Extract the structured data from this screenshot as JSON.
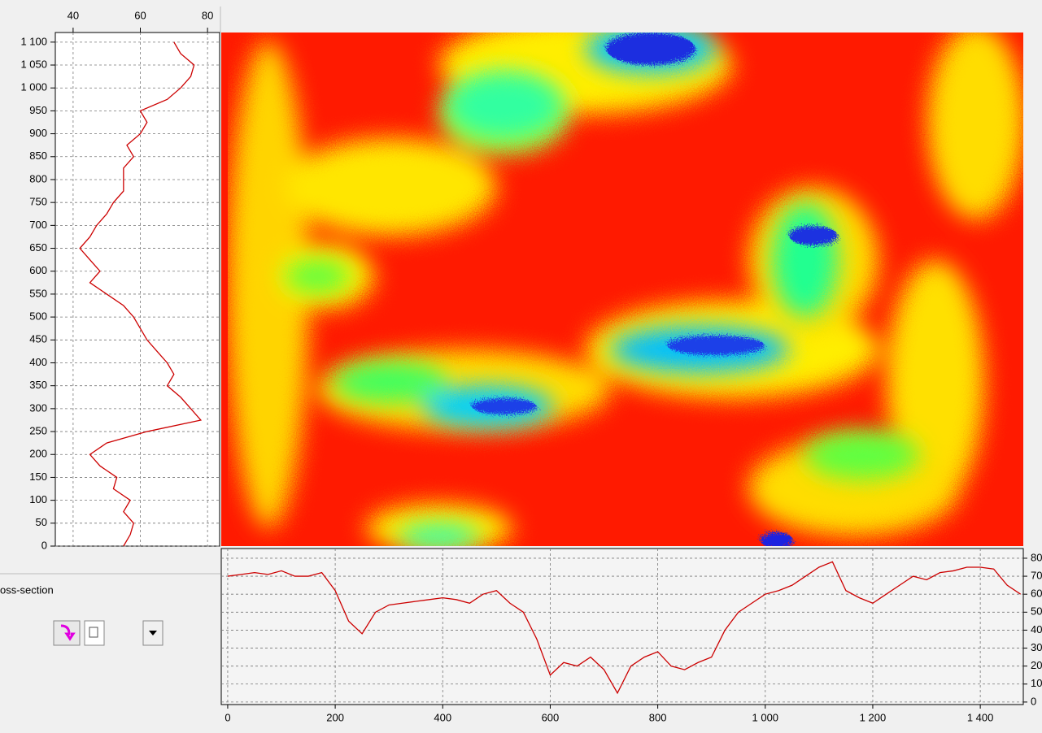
{
  "chart_data": [
    {
      "type": "line",
      "orientation": "vertical",
      "color": "#cc0000",
      "grid": true,
      "y": [
        0,
        25,
        50,
        75,
        100,
        125,
        150,
        175,
        200,
        225,
        250,
        275,
        300,
        325,
        350,
        375,
        400,
        425,
        450,
        475,
        500,
        525,
        550,
        575,
        600,
        625,
        650,
        675,
        700,
        725,
        750,
        775,
        800,
        825,
        850,
        875,
        900,
        925,
        950,
        975,
        1000,
        1025,
        1050,
        1075,
        1100
      ],
      "values": [
        55,
        57,
        58,
        55,
        57,
        52,
        53,
        48,
        45,
        50,
        62,
        78,
        75,
        72,
        68,
        70,
        68,
        65,
        62,
        60,
        58,
        55,
        50,
        45,
        48,
        45,
        42,
        45,
        47,
        50,
        52,
        55,
        55,
        55,
        58,
        56,
        60,
        62,
        60,
        68,
        72,
        75,
        76,
        72,
        70
      ],
      "xlim": [
        34.7,
        83.6
      ],
      "xticks": [
        40,
        60,
        80
      ],
      "ylim": [
        0,
        1121
      ],
      "yticks": [
        0,
        50,
        100,
        150,
        200,
        250,
        300,
        350,
        400,
        450,
        500,
        550,
        600,
        650,
        700,
        750,
        800,
        850,
        900,
        950,
        {
          "value": 1000,
          "label": "1 000"
        },
        {
          "value": 1050,
          "label": "1 050"
        },
        {
          "value": 1100,
          "label": "1 100"
        }
      ]
    },
    {
      "type": "line",
      "orientation": "horizontal",
      "color": "#cc0000",
      "grid": true,
      "x": [
        0,
        25,
        50,
        75,
        100,
        125,
        150,
        175,
        200,
        225,
        250,
        275,
        300,
        325,
        350,
        375,
        400,
        425,
        450,
        475,
        500,
        525,
        550,
        575,
        600,
        625,
        650,
        675,
        700,
        725,
        750,
        775,
        800,
        825,
        850,
        875,
        900,
        925,
        950,
        975,
        1000,
        1025,
        1050,
        1075,
        1100,
        1125,
        1150,
        1175,
        1200,
        1225,
        1250,
        1275,
        1300,
        1325,
        1350,
        1375,
        1400,
        1425,
        1450,
        1475
      ],
      "values": [
        70,
        71,
        72,
        71,
        73,
        70,
        70,
        72,
        62,
        45,
        38,
        50,
        54,
        55,
        56,
        57,
        58,
        57,
        55,
        60,
        62,
        55,
        50,
        35,
        15,
        22,
        20,
        25,
        18,
        5,
        20,
        25,
        28,
        20,
        18,
        22,
        25,
        40,
        50,
        55,
        60,
        62,
        65,
        70,
        75,
        78,
        62,
        58,
        55,
        60,
        65,
        70,
        68,
        72,
        73,
        75,
        75,
        74,
        65,
        60
      ],
      "xlim": [
        -12,
        1480
      ],
      "xticks": [
        0,
        200,
        400,
        600,
        800,
        {
          "value": 1000,
          "label": "1 000"
        },
        {
          "value": 1200,
          "label": "1 200"
        },
        {
          "value": 1400,
          "label": "1 400"
        }
      ],
      "ylim": [
        -1.4,
        85.4
      ],
      "yticks": [
        0,
        10,
        20,
        30,
        40,
        50,
        60,
        70,
        80
      ]
    }
  ],
  "panel_label": "oss-section"
}
